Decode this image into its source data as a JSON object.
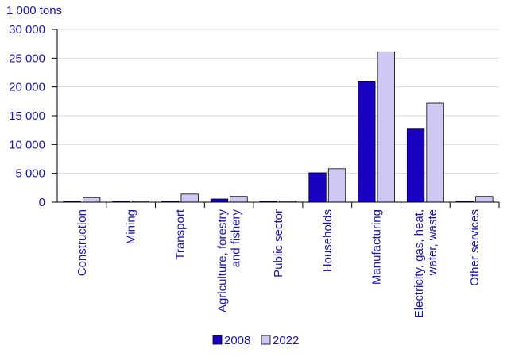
{
  "chart_data": {
    "type": "bar",
    "ylabel": "1 000 tons",
    "ylim": [
      0,
      30000
    ],
    "yticks": [
      0,
      5000,
      10000,
      15000,
      20000,
      25000,
      30000
    ],
    "ytick_labels": [
      "0",
      "5 000",
      "10 000",
      "15 000",
      "20 000",
      "25 000",
      "30 000"
    ],
    "grid": true,
    "legend": "bottom-center",
    "categories": [
      [
        "Construction"
      ],
      [
        "Mining"
      ],
      [
        "Transport"
      ],
      [
        "Agriculture, forestry",
        "and fishery"
      ],
      [
        "Public sector"
      ],
      [
        "Households"
      ],
      [
        "Manufacturing"
      ],
      [
        "Electricity, gas, heat,",
        "water, waste"
      ],
      [
        "Other services"
      ]
    ],
    "series": [
      {
        "name": "2008",
        "color": "#1a00c0",
        "values": [
          100,
          50,
          150,
          550,
          100,
          5100,
          21000,
          12700,
          100
        ]
      },
      {
        "name": "2022",
        "color": "#cfc8f3",
        "values": [
          800,
          50,
          1400,
          1000,
          100,
          5800,
          26100,
          17200,
          1000
        ]
      }
    ]
  }
}
